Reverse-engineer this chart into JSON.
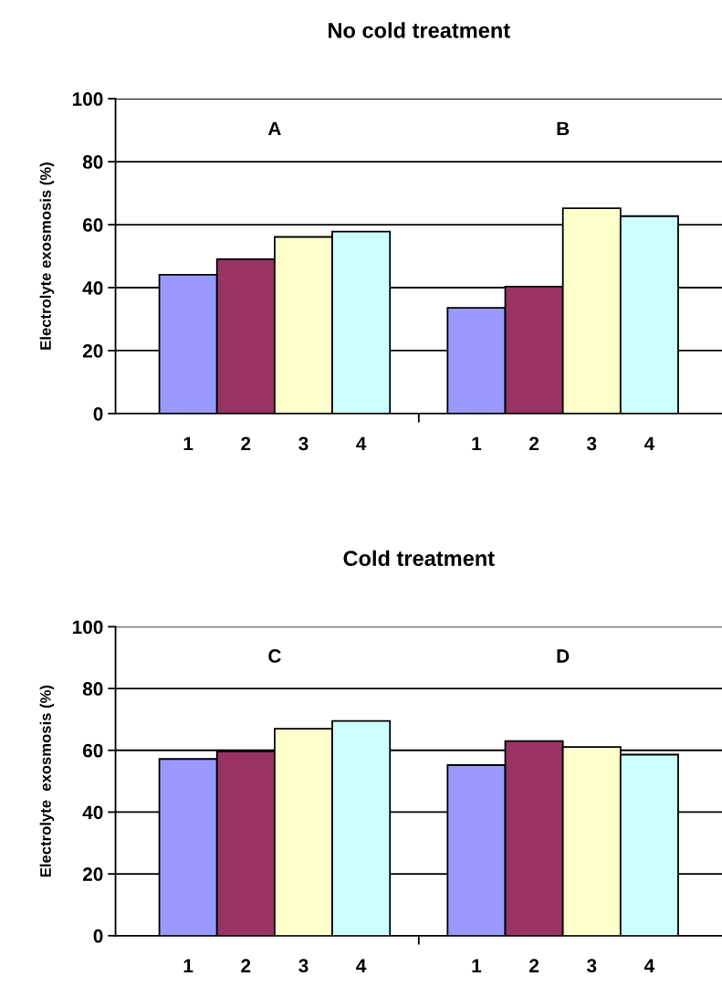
{
  "chart_data": [
    {
      "type": "bar",
      "title": "No cold treatment",
      "ylabel": "Electrolyte exosmosis (%)",
      "categories": [
        "1",
        "2",
        "3",
        "4",
        null,
        "1",
        "2",
        "3",
        "4"
      ],
      "values": [
        44.1,
        49.0,
        56.1,
        57.8,
        null,
        33.6,
        40.3,
        65.2,
        62.7
      ],
      "colors": [
        "#9999ff",
        "#993366",
        "#ffffcc",
        "#ccffff",
        null,
        "#9999ff",
        "#993366",
        "#ffffcc",
        "#ccffff"
      ],
      "ylim": [
        0,
        100
      ],
      "yticks": [
        0,
        20,
        40,
        60,
        80,
        100
      ],
      "grid": "y",
      "annotations": [
        "A",
        "B"
      ]
    },
    {
      "type": "bar",
      "title": "Cold treatment",
      "ylabel": "Electrolyte  exosmosis (%)",
      "categories": [
        "1",
        "2",
        "3",
        "4",
        null,
        "1",
        "2",
        "3",
        "4"
      ],
      "values": [
        57.2,
        59.6,
        67.0,
        69.5,
        null,
        55.2,
        63.0,
        61.1,
        58.6
      ],
      "colors": [
        "#9999ff",
        "#993366",
        "#ffffcc",
        "#ccffff",
        null,
        "#9999ff",
        "#993366",
        "#ffffcc",
        "#ccffff"
      ],
      "ylim": [
        0,
        100
      ],
      "yticks": [
        0,
        20,
        40,
        60,
        80,
        100
      ],
      "grid": "y",
      "annotations": [
        "C",
        "D"
      ]
    }
  ]
}
